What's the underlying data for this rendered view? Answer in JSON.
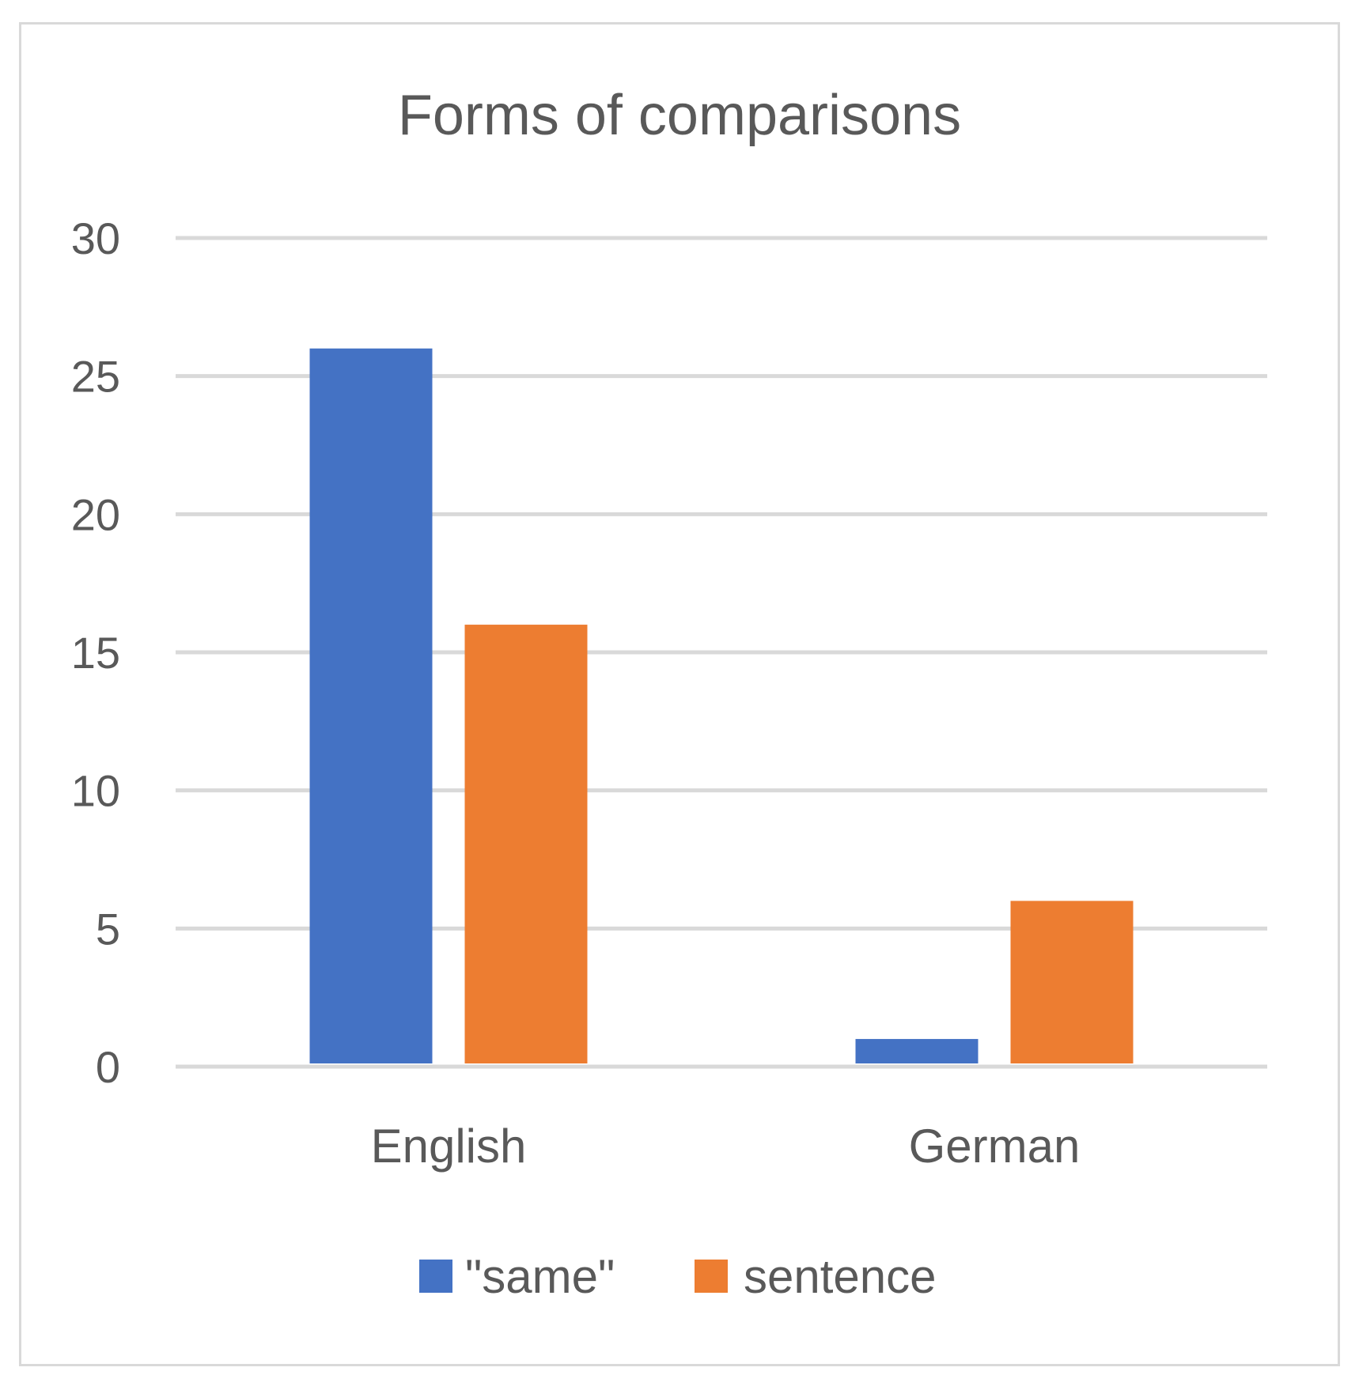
{
  "chart_data": {
    "type": "bar",
    "title": "Forms of comparisons",
    "categories": [
      "English",
      "German"
    ],
    "series": [
      {
        "name": "\"same\"",
        "values": [
          26,
          1
        ],
        "color": "#4472c4"
      },
      {
        "name": "sentence",
        "values": [
          16,
          6
        ],
        "color": "#ed7d31"
      }
    ],
    "y_ticks": [
      "0",
      "5",
      "10",
      "15",
      "20",
      "25",
      "30"
    ],
    "ylim": [
      0,
      30
    ],
    "xlabel": "",
    "ylabel": "",
    "grid": true,
    "legend_position": "bottom"
  }
}
